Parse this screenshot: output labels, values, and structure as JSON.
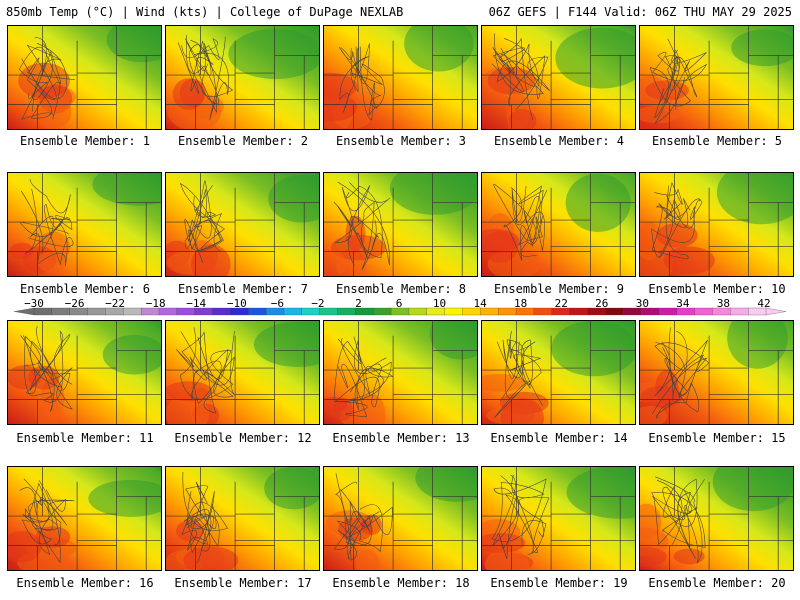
{
  "header": {
    "left": "850mb Temp (°C) | Wind (kts) | College of DuPage NEXLAB",
    "right": "06Z GEFS | F144 Valid: 06Z THU MAY 29 2025"
  },
  "members": [
    "Ensemble Member: 1",
    "Ensemble Member: 2",
    "Ensemble Member: 3",
    "Ensemble Member: 4",
    "Ensemble Member: 5",
    "Ensemble Member: 6",
    "Ensemble Member: 7",
    "Ensemble Member: 8",
    "Ensemble Member: 9",
    "Ensemble Member: 10",
    "Ensemble Member: 11",
    "Ensemble Member: 12",
    "Ensemble Member: 13",
    "Ensemble Member: 14",
    "Ensemble Member: 15",
    "Ensemble Member: 16",
    "Ensemble Member: 17",
    "Ensemble Member: 18",
    "Ensemble Member: 19",
    "Ensemble Member: 20"
  ],
  "colorbar": {
    "ticks": [
      "-30",
      "-26",
      "-22",
      "-18",
      "-14",
      "-10",
      "-6",
      "-2",
      "2",
      "6",
      "10",
      "14",
      "18",
      "22",
      "26",
      "30",
      "34",
      "38",
      "42"
    ],
    "colors": [
      "#6e6e6e",
      "#7c7c7c",
      "#8a8a8a",
      "#989898",
      "#a7a7a7",
      "#b9b9b9",
      "#c084d8",
      "#b366dd",
      "#a04ce0",
      "#7f3ccf",
      "#5a2bd0",
      "#2e2ad8",
      "#1a56e0",
      "#1a8ce6",
      "#1ab6e6",
      "#18d2c8",
      "#18c48a",
      "#14b060",
      "#169a3a",
      "#3aa02a",
      "#7cc024",
      "#b8d81c",
      "#e8ec18",
      "#fff200",
      "#ffd400",
      "#ffb300",
      "#ff9400",
      "#ff7400",
      "#f44c10",
      "#e02818",
      "#c41414",
      "#a00c10",
      "#7e0a0e",
      "#900a40",
      "#b00a78",
      "#d01aa8",
      "#e83cc8",
      "#f060d8",
      "#f486e0",
      "#f8aae8",
      "#fbcaf0"
    ]
  }
}
